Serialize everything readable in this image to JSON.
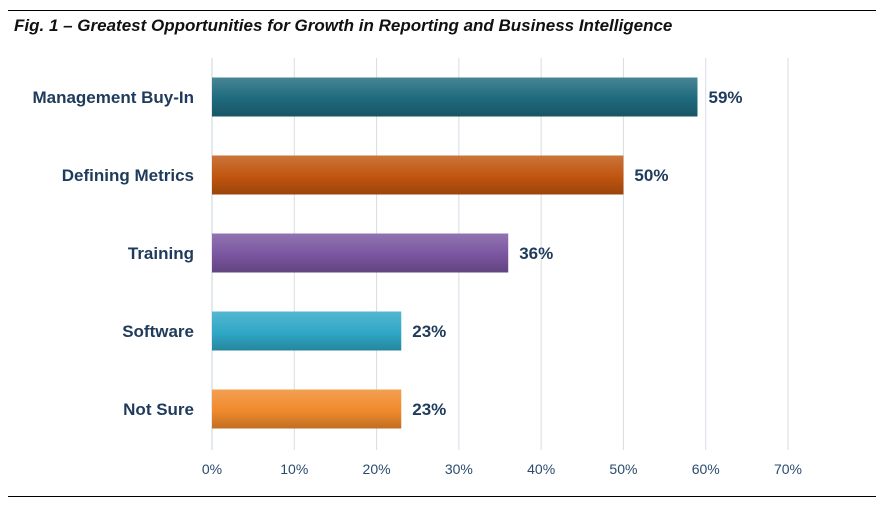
{
  "figure_title": "Fig. 1 – Greatest Opportunities for Growth in Reporting and Business Intelligence",
  "chart_data": {
    "type": "bar",
    "orientation": "horizontal",
    "title": "Fig. 1 – Greatest Opportunities for Growth in Reporting and Business Intelligence",
    "categories": [
      "Management Buy-In",
      "Defining Metrics",
      "Training",
      "Software",
      "Not Sure"
    ],
    "values": [
      59,
      50,
      36,
      23,
      23
    ],
    "value_labels": [
      "59%",
      "50%",
      "36%",
      "23%",
      "23%"
    ],
    "colors": [
      "#1e6a7e",
      "#c0550f",
      "#7a55a0",
      "#2fa7c6",
      "#f08a2c"
    ],
    "xlim": [
      0,
      70
    ],
    "xticks": [
      0,
      10,
      20,
      30,
      40,
      50,
      60,
      70
    ],
    "xtick_labels": [
      "0%",
      "10%",
      "20%",
      "30%",
      "40%",
      "50%",
      "60%",
      "70%"
    ],
    "xlabel": "",
    "ylabel": "",
    "grid": "vertical",
    "legend": "none"
  }
}
